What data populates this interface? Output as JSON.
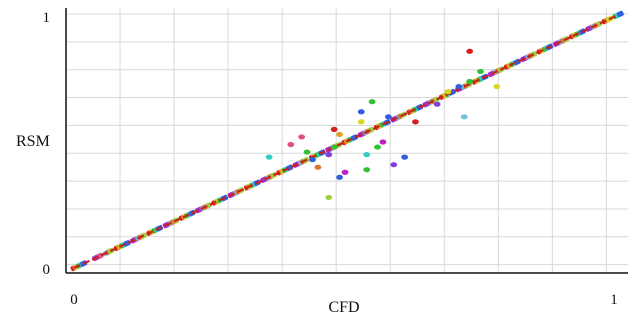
{
  "chart_data": {
    "type": "scatter",
    "title": "",
    "xlabel": "CFD",
    "ylabel": "RSM",
    "xlim": [
      0,
      1
    ],
    "ylim": [
      0,
      1
    ],
    "x_ticks": [
      "0",
      "1"
    ],
    "y_ticks": [
      "0",
      "1"
    ],
    "grid": true,
    "legend": "none",
    "marker_colors": [
      "#d62020",
      "#e0a020",
      "#d8d820",
      "#30c030",
      "#30d0c0",
      "#3060e0",
      "#c020c0",
      "#8040e0",
      "#e05080",
      "#70c0e0",
      "#e07030",
      "#a0d040"
    ],
    "diagonal_points": [
      [
        0.0,
        0.0
      ],
      [
        0.01,
        0.01
      ],
      [
        0.04,
        0.04
      ],
      [
        0.06,
        0.06
      ],
      [
        0.08,
        0.08
      ],
      [
        0.09,
        0.09
      ],
      [
        0.11,
        0.11
      ],
      [
        0.12,
        0.12
      ],
      [
        0.14,
        0.14
      ],
      [
        0.15,
        0.15
      ],
      [
        0.17,
        0.17
      ],
      [
        0.18,
        0.18
      ],
      [
        0.2,
        0.2
      ],
      [
        0.21,
        0.21
      ],
      [
        0.23,
        0.23
      ],
      [
        0.24,
        0.24
      ],
      [
        0.26,
        0.26
      ],
      [
        0.27,
        0.27
      ],
      [
        0.29,
        0.29
      ],
      [
        0.3,
        0.3
      ],
      [
        0.32,
        0.32
      ],
      [
        0.33,
        0.33
      ],
      [
        0.35,
        0.35
      ],
      [
        0.36,
        0.36
      ],
      [
        0.38,
        0.38
      ],
      [
        0.39,
        0.39
      ],
      [
        0.41,
        0.41
      ],
      [
        0.42,
        0.42
      ],
      [
        0.44,
        0.44
      ],
      [
        0.45,
        0.45
      ],
      [
        0.47,
        0.47
      ],
      [
        0.48,
        0.48
      ],
      [
        0.5,
        0.5
      ],
      [
        0.51,
        0.51
      ],
      [
        0.53,
        0.53
      ],
      [
        0.54,
        0.54
      ],
      [
        0.56,
        0.56
      ],
      [
        0.57,
        0.57
      ],
      [
        0.59,
        0.59
      ],
      [
        0.6,
        0.6
      ],
      [
        0.62,
        0.62
      ],
      [
        0.63,
        0.63
      ],
      [
        0.65,
        0.65
      ],
      [
        0.66,
        0.66
      ],
      [
        0.68,
        0.68
      ],
      [
        0.69,
        0.69
      ],
      [
        0.71,
        0.71
      ],
      [
        0.72,
        0.72
      ],
      [
        0.74,
        0.74
      ],
      [
        0.75,
        0.75
      ],
      [
        0.77,
        0.77
      ],
      [
        0.78,
        0.78
      ],
      [
        0.8,
        0.8
      ],
      [
        0.81,
        0.81
      ],
      [
        0.83,
        0.83
      ],
      [
        0.84,
        0.84
      ],
      [
        0.86,
        0.86
      ],
      [
        0.87,
        0.87
      ],
      [
        0.89,
        0.89
      ],
      [
        0.9,
        0.9
      ],
      [
        0.92,
        0.92
      ],
      [
        0.93,
        0.93
      ],
      [
        0.95,
        0.95
      ],
      [
        0.96,
        0.96
      ],
      [
        0.98,
        0.98
      ],
      [
        1.0,
        1.0
      ]
    ],
    "outlier_points": [
      [
        0.36,
        0.44,
        "#30d0c0"
      ],
      [
        0.4,
        0.49,
        "#e05080"
      ],
      [
        0.42,
        0.52,
        "#e05080"
      ],
      [
        0.43,
        0.46,
        "#30c030"
      ],
      [
        0.44,
        0.43,
        "#3060e0"
      ],
      [
        0.45,
        0.4,
        "#e07030"
      ],
      [
        0.47,
        0.28,
        "#a0d040"
      ],
      [
        0.47,
        0.45,
        "#8040e0"
      ],
      [
        0.48,
        0.48,
        "#30c030"
      ],
      [
        0.49,
        0.36,
        "#3060e0"
      ],
      [
        0.5,
        0.38,
        "#c020c0"
      ],
      [
        0.48,
        0.55,
        "#d62020"
      ],
      [
        0.49,
        0.53,
        "#e0a020"
      ],
      [
        0.53,
        0.62,
        "#3060e0"
      ],
      [
        0.55,
        0.66,
        "#30c030"
      ],
      [
        0.54,
        0.45,
        "#30d0c0"
      ],
      [
        0.53,
        0.58,
        "#d8d820"
      ],
      [
        0.54,
        0.39,
        "#30c030"
      ],
      [
        0.56,
        0.48,
        "#30c030"
      ],
      [
        0.57,
        0.5,
        "#c020c0"
      ],
      [
        0.58,
        0.6,
        "#3060e0"
      ],
      [
        0.59,
        0.41,
        "#8040e0"
      ],
      [
        0.61,
        0.44,
        "#3060e0"
      ],
      [
        0.63,
        0.58,
        "#d62020"
      ],
      [
        0.67,
        0.65,
        "#8040e0"
      ],
      [
        0.69,
        0.7,
        "#d8d820"
      ],
      [
        0.71,
        0.72,
        "#3060e0"
      ],
      [
        0.72,
        0.6,
        "#70c0e0"
      ],
      [
        0.73,
        0.86,
        "#d62020"
      ],
      [
        0.75,
        0.78,
        "#30c030"
      ],
      [
        0.78,
        0.72,
        "#d8d820"
      ],
      [
        0.73,
        0.74,
        "#30c030"
      ]
    ]
  }
}
